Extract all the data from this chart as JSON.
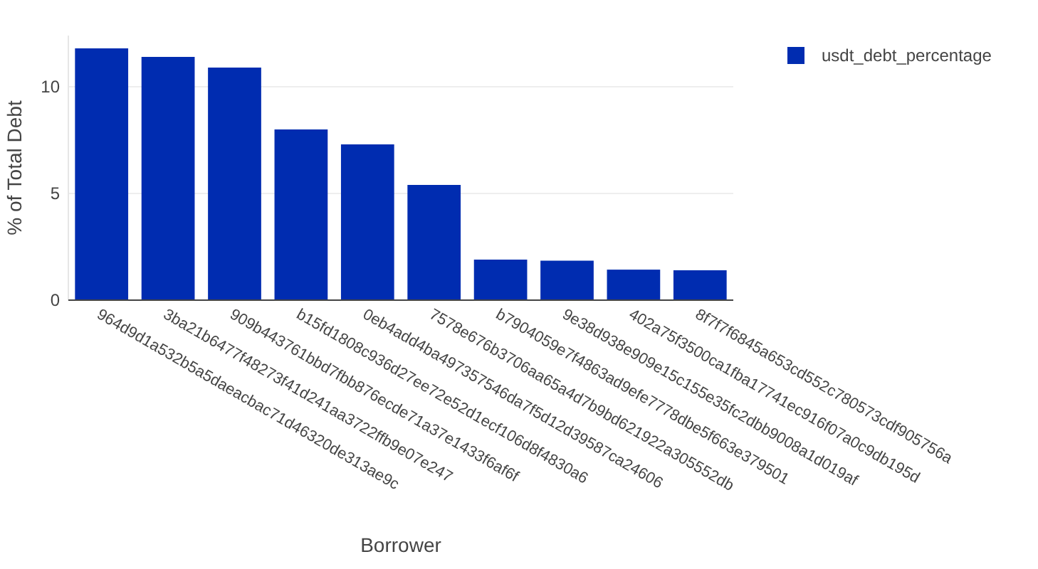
{
  "chart_data": {
    "type": "bar",
    "xlabel": "Borrower",
    "ylabel": "% of Total Debt",
    "categories": [
      "964d9d1a532b5a5daeacbac71d46320de313ae9c",
      "3ba21b6477f48273f41d241aa3722ffb9e07e247",
      "909b443761bbd7fbb876ecde71a37e1433f6af6f",
      "b15fd1808c936d27ee72e52d1ecf106d8f4830a6",
      "0eb4add4ba497357546da7f5d12d39587ca24606",
      "7578e676b3706aa65a4d7b9bd621922a305552db",
      "b7904059e7f4863ad9efe7778dbe5f663e379501",
      "9e38d938e909e15c155e35fc2dbb9008a1d019af",
      "402a75f3500ca1fba17741ec916f07a0c9db195d",
      "8f7f7f6845a653cd552c780573cdf905756a"
    ],
    "series": [
      {
        "name": "usdt_debt_percentage",
        "color": "#002cb0",
        "values": [
          11.8,
          11.4,
          10.9,
          8.0,
          7.3,
          5.4,
          1.9,
          1.85,
          1.43,
          1.4
        ]
      }
    ],
    "ylim": [
      0,
      12.4
    ],
    "yticks": [
      0,
      5,
      10
    ],
    "grid": "y",
    "legend": "top right"
  }
}
